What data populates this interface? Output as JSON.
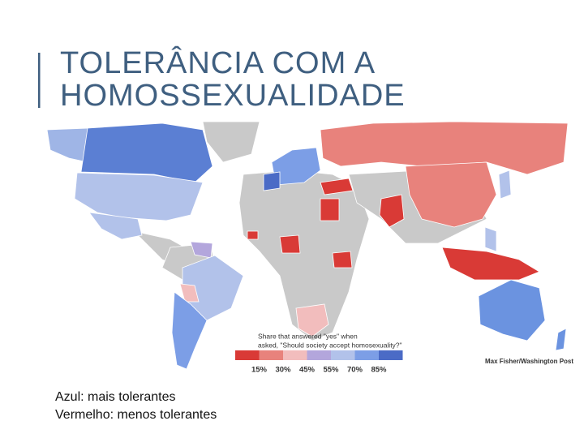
{
  "title": {
    "line1": "TOLERÂNCIA COM A",
    "line2": "HOMOSSEXUALIDADE"
  },
  "legend": {
    "line1": "Share that  answered \"yes\" when",
    "line2": "asked, \"Should society accept homosexuality?\"",
    "colors": [
      "#d93a36",
      "#e8827c",
      "#f2bdbd",
      "#b3a6dc",
      "#b2c2ea",
      "#7c9ee6",
      "#4b6bc6"
    ],
    "labels": [
      "15%",
      "30%",
      "45%",
      "55%",
      "70%",
      "85%"
    ]
  },
  "credit": "Max Fisher/Washington Post",
  "caption": {
    "line1": "Azul: mais tolerantes",
    "line2": "Vermelho: menos tolerantes"
  }
}
